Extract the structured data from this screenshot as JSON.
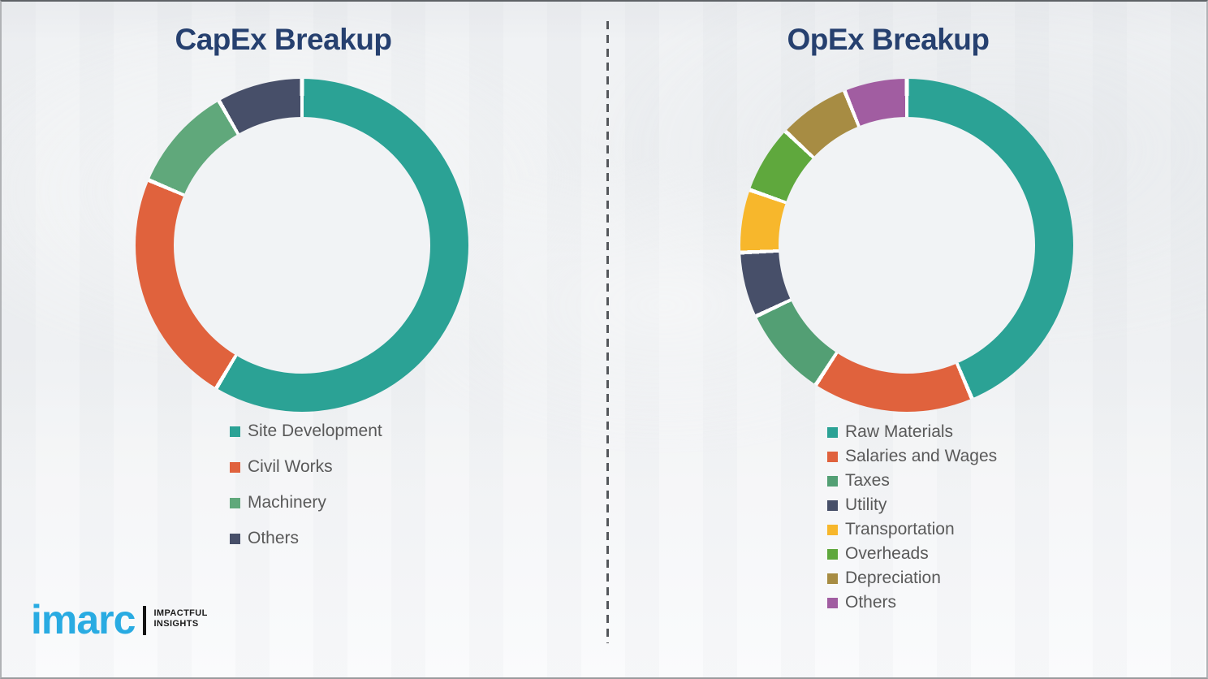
{
  "theme": {
    "title_color": "#26406f",
    "legend_text_color": "#595959",
    "brand_blue": "#29abe2",
    "divider_color": "#54575b",
    "background_color": "#eff1f3"
  },
  "brand": {
    "wordmark": "imarc",
    "tagline_line1": "IMPACTFUL",
    "tagline_line2": "INSIGHTS"
  },
  "chart_data": [
    {
      "type": "pie",
      "subtype": "donut",
      "title": "CapEx Breakup",
      "labels": [
        "Site Development",
        "Civil Works",
        "Machinery",
        "Others"
      ],
      "values": [
        58.6,
        22.8,
        10.3,
        8.3
      ],
      "colors": [
        "#2ba295",
        "#e0623d",
        "#60a87b",
        "#474f69"
      ],
      "start_angle_deg": 0,
      "segment_gap_deg": 1.4,
      "legend_position": "bottom",
      "units": "percent (estimated from arc angles)"
    },
    {
      "type": "pie",
      "subtype": "donut",
      "title": "OpEx Breakup",
      "labels": [
        "Raw Materials",
        "Salaries and Wages",
        "Taxes",
        "Utility",
        "Transportation",
        "Overheads",
        "Depreciation",
        "Others"
      ],
      "values": [
        43.6,
        15.6,
        8.8,
        6.3,
        6.1,
        6.6,
        6.9,
        6.1
      ],
      "colors": [
        "#2ba295",
        "#e0623d",
        "#539f74",
        "#474f69",
        "#f7b72c",
        "#5fa83d",
        "#a78c43",
        "#a15da1"
      ],
      "start_angle_deg": 0,
      "segment_gap_deg": 1.4,
      "legend_position": "bottom",
      "units": "percent (estimated from arc angles)"
    }
  ]
}
